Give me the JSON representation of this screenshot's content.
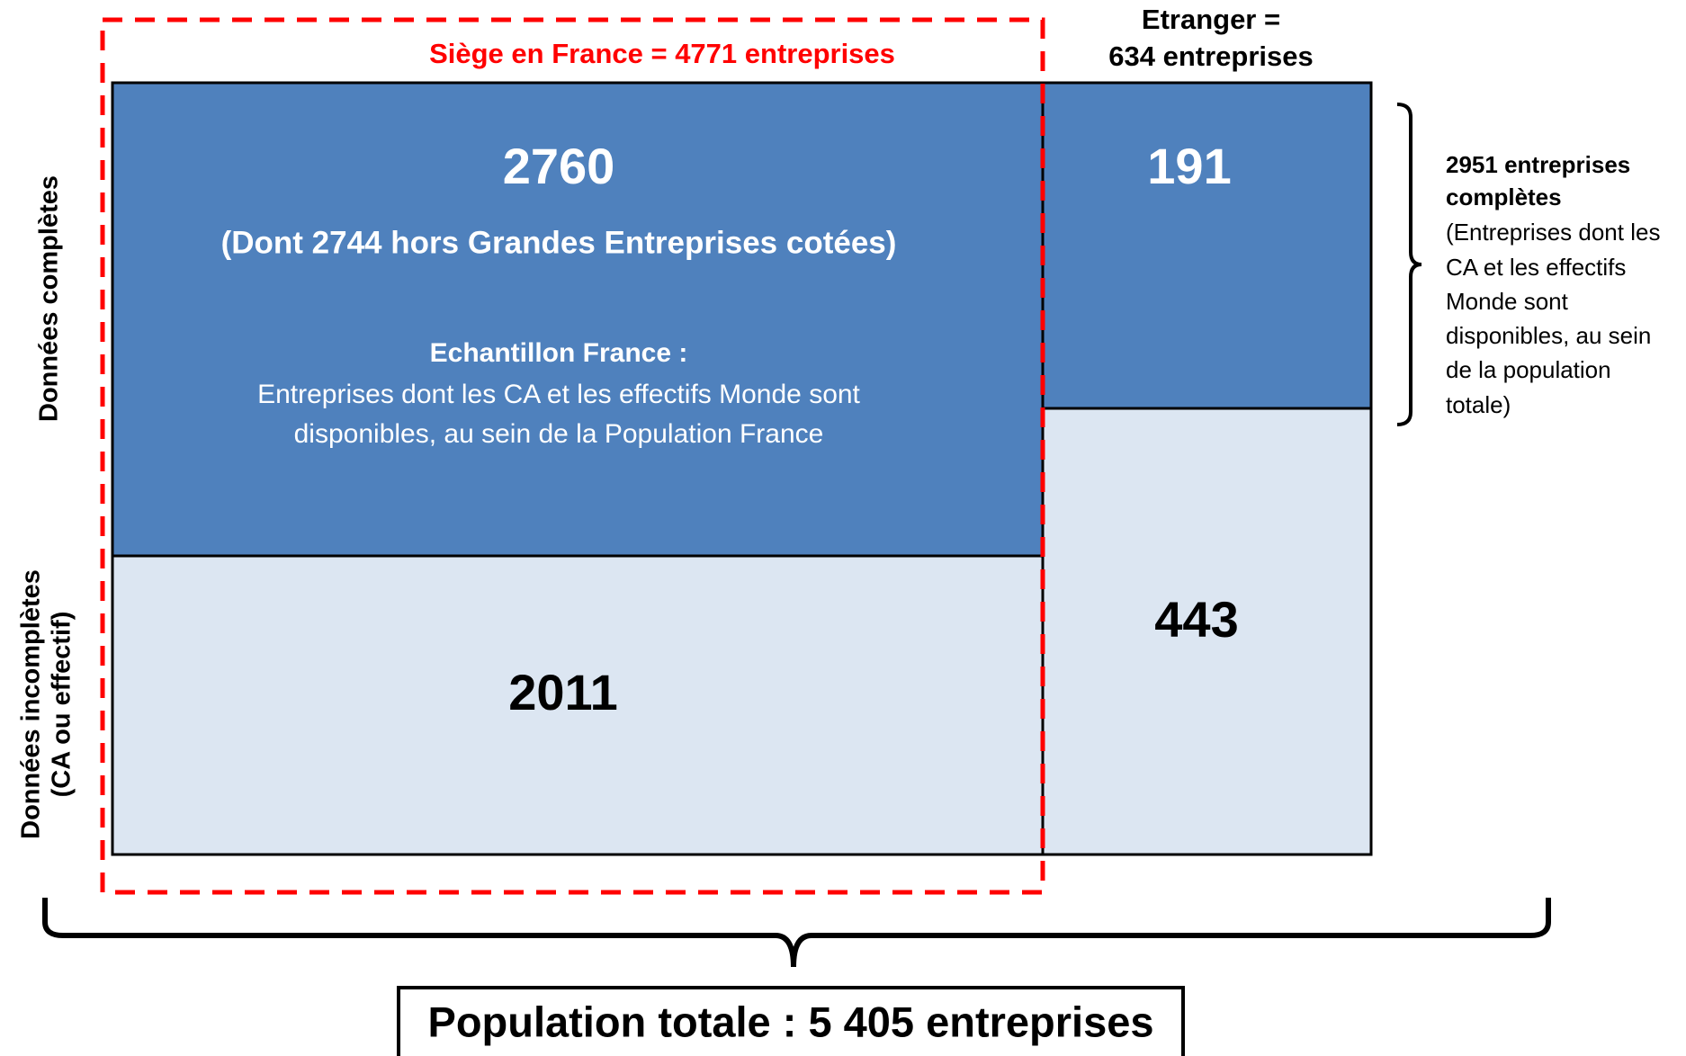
{
  "france": {
    "title": "Siège en France = 4771 entreprises",
    "complete_value": "2760",
    "complete_note": "(Dont 2744 hors Grandes Entreprises cotées)",
    "sample_title": "Echantillon France :",
    "sample_lines": [
      "Entreprises dont les CA et les effectifs Monde sont",
      "disponibles, au sein de la Population France"
    ],
    "incomplete_value": "2011"
  },
  "etranger": {
    "title_lines": [
      "Etranger  =",
      "634 entreprises"
    ],
    "complete_value": "191",
    "incomplete_value": "443"
  },
  "row_labels": {
    "complete": "Données complètes",
    "incomplete_lines": [
      "Données incomplètes",
      "(CA ou effectif)"
    ]
  },
  "right_note": {
    "bold_lines": [
      "2951 entreprises",
      "complètes"
    ],
    "lines": [
      "(Entreprises dont les",
      "CA et les effectifs",
      "Monde sont",
      "disponibles, au sein",
      "de la population",
      "totale)"
    ]
  },
  "total": "Population totale : 5 405 entreprises"
}
